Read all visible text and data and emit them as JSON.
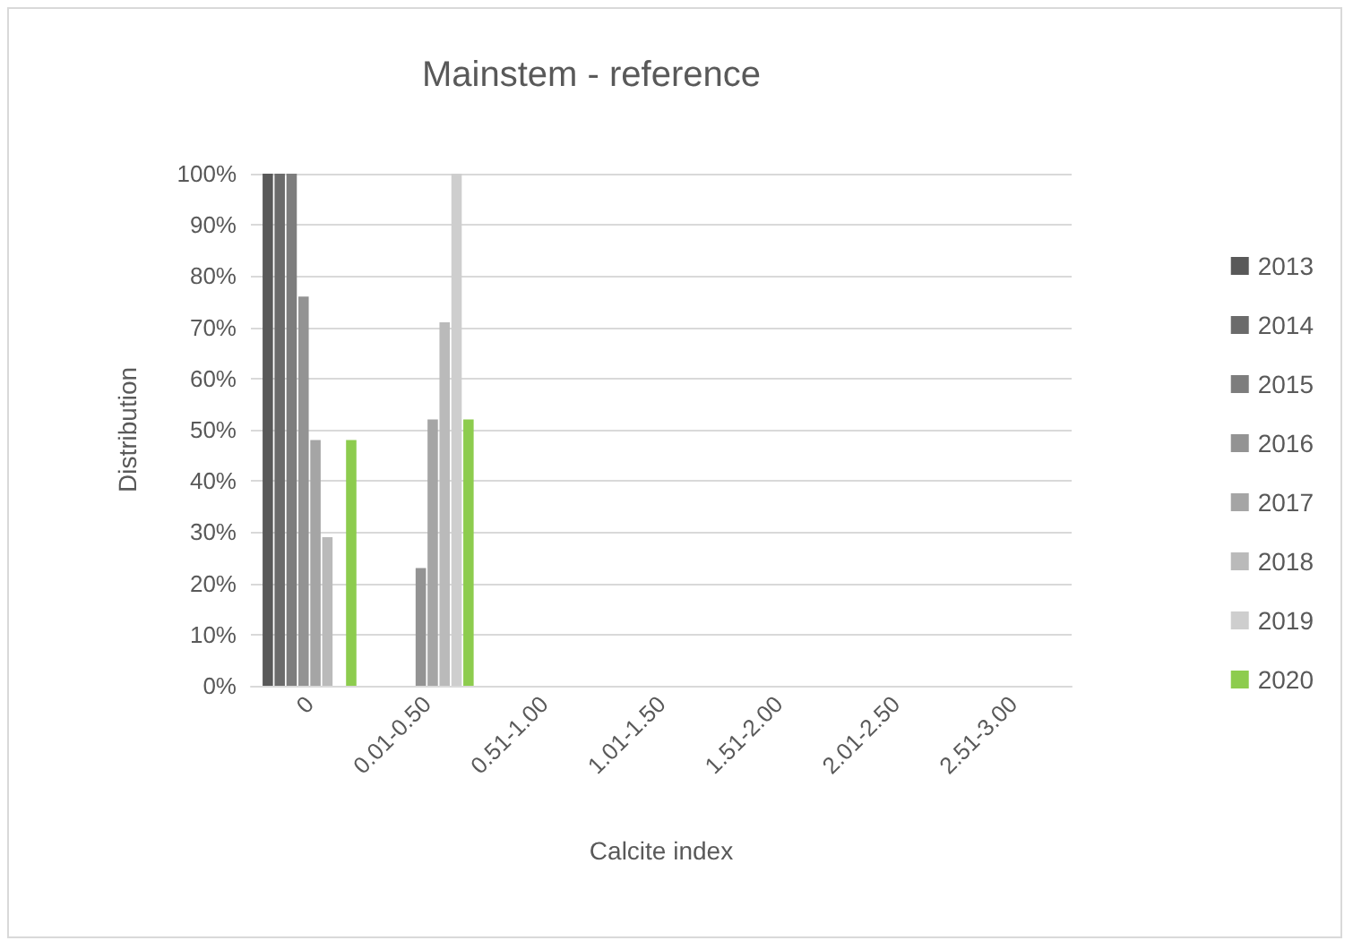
{
  "chart_data": {
    "type": "bar",
    "title": "Mainstem - reference",
    "xlabel": "Calcite index",
    "ylabel": "Distribution",
    "categories": [
      "0",
      "0.01-0.50",
      "0.51-1.00",
      "1.01-1.50",
      "1.51-2.00",
      "2.01-2.50",
      "2.51-3.00"
    ],
    "series": [
      {
        "name": "2013",
        "color": "#595959",
        "values": [
          100,
          0,
          0,
          0,
          0,
          0,
          0
        ]
      },
      {
        "name": "2014",
        "color": "#6b6b6b",
        "values": [
          100,
          0,
          0,
          0,
          0,
          0,
          0
        ]
      },
      {
        "name": "2015",
        "color": "#7d7d7d",
        "values": [
          100,
          0,
          0,
          0,
          0,
          0,
          0
        ]
      },
      {
        "name": "2016",
        "color": "#939393",
        "values": [
          76,
          23,
          0,
          0,
          0,
          0,
          0
        ]
      },
      {
        "name": "2017",
        "color": "#a5a5a5",
        "values": [
          48,
          52,
          0,
          0,
          0,
          0,
          0
        ]
      },
      {
        "name": "2018",
        "color": "#bababa",
        "values": [
          29,
          71,
          0,
          0,
          0,
          0,
          0
        ]
      },
      {
        "name": "2019",
        "color": "#cecece",
        "values": [
          0,
          100,
          0,
          0,
          0,
          0,
          0
        ]
      },
      {
        "name": "2020",
        "color": "#8dcc4e",
        "values": [
          48,
          52,
          0,
          0,
          0,
          0,
          0
        ]
      }
    ],
    "ylim": [
      0,
      100
    ],
    "yticks": [
      {
        "value": 0,
        "label": "0%"
      },
      {
        "value": 10,
        "label": "10%"
      },
      {
        "value": 20,
        "label": "20%"
      },
      {
        "value": 30,
        "label": "30%"
      },
      {
        "value": 40,
        "label": "40%"
      },
      {
        "value": 50,
        "label": "50%"
      },
      {
        "value": 60,
        "label": "60%"
      },
      {
        "value": 70,
        "label": "70%"
      },
      {
        "value": 80,
        "label": "80%"
      },
      {
        "value": 90,
        "label": "90%"
      },
      {
        "value": 100,
        "label": "100%"
      }
    ],
    "grid": "y",
    "legend": "right"
  }
}
